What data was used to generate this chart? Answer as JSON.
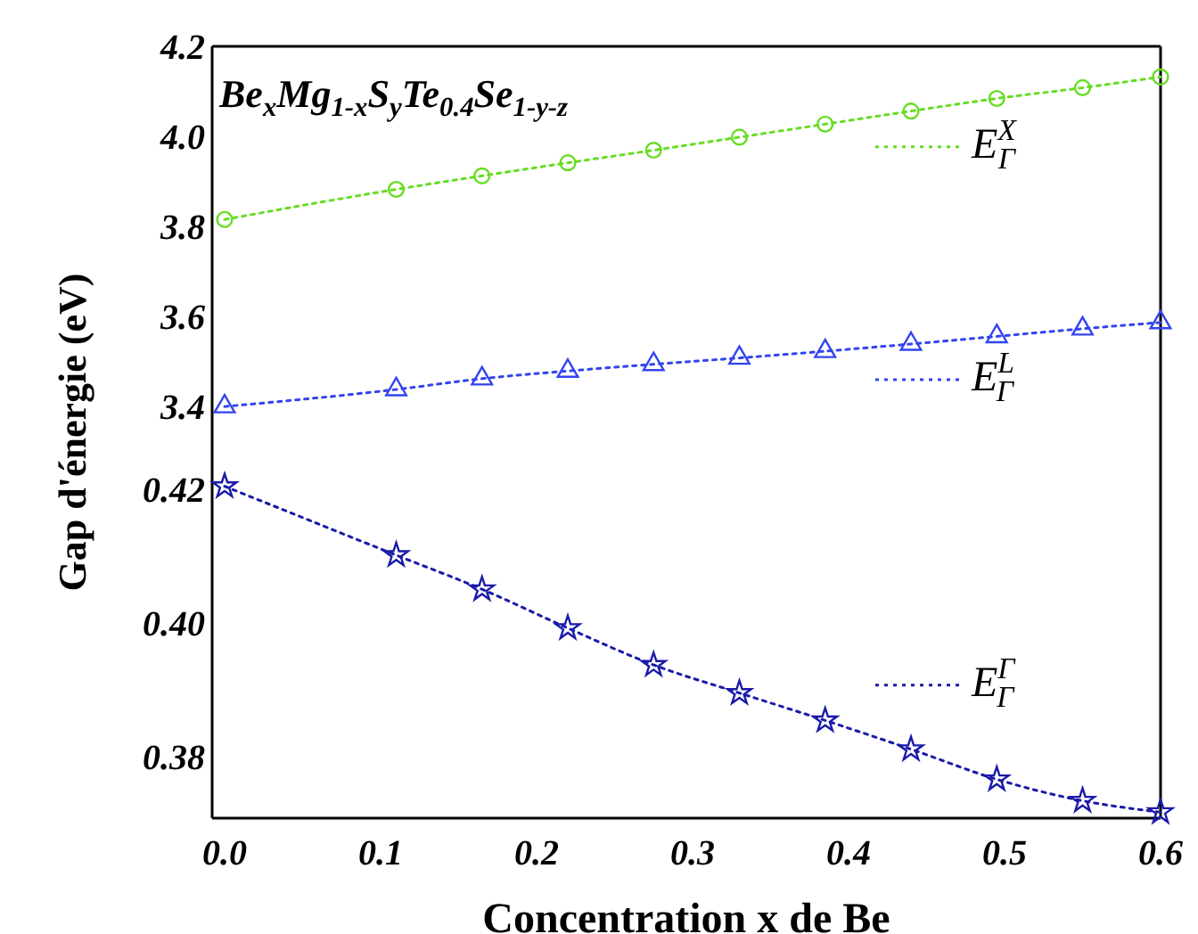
{
  "chart_data": [
    {
      "type": "line",
      "title": "Be$_{x}$Mg$_{1-x}$S$_{y}$Te$_{0.4}$Se$_{1-y-z}$",
      "ylabel": "Gap d'énergie (eV)",
      "x": [
        0,
        0.11,
        0.165,
        0.22,
        0.275,
        0.33,
        0.385,
        0.44,
        0.495,
        0.55,
        0.6
      ],
      "xlim": [
        -0.008,
        0.6
      ],
      "ylim": [
        3.32,
        4.2
      ],
      "yticks": [
        {
          "value": 3.4,
          "label": "3.4"
        },
        {
          "value": 3.6,
          "label": "3.6"
        },
        {
          "value": 3.8,
          "label": "3.8"
        },
        {
          "value": 4.0,
          "label": "4.0"
        },
        {
          "value": 4.2,
          "label": "4.2"
        }
      ],
      "tick_labels": "y",
      "grid": false,
      "legend": "right",
      "line_style": "dotted",
      "series": [
        {
          "name": "E$^{X}$$_{Γ}$",
          "color": "#66dd22",
          "marker": "circle",
          "values": [
            3.815,
            3.882,
            3.912,
            3.941,
            3.969,
            3.998,
            4.027,
            4.056,
            4.084,
            4.108,
            4.132
          ]
        },
        {
          "name": "E$^{L}$$_{Γ}$",
          "color": "#3344ee",
          "marker": "triangle",
          "values": [
            3.399,
            3.437,
            3.461,
            3.478,
            3.493,
            3.507,
            3.522,
            3.538,
            3.555,
            3.572,
            3.586
          ]
        }
      ]
    },
    {
      "type": "line",
      "xlabel": "Concentration x de Be",
      "x": [
        0,
        0.11,
        0.165,
        0.22,
        0.275,
        0.33,
        0.385,
        0.44,
        0.495,
        0.55,
        0.6
      ],
      "xlim": [
        -0.008,
        0.6
      ],
      "xticks": [
        {
          "value": 0,
          "label": "0.0"
        },
        0.1,
        0.2,
        0.3,
        0.4,
        0.5,
        0.6
      ],
      "ylim": [
        0.3708,
        0.427
      ],
      "yticks": [
        0.38,
        {
          "value": 0.4,
          "label": "0.40"
        },
        0.42
      ],
      "grid": false,
      "legend": "right",
      "line_style": "dotted",
      "series": [
        {
          "name": "E$^{Γ}$$_{Γ}$",
          "color": "#1a1aaa",
          "marker": "star",
          "values": [
            0.4204,
            0.4101,
            0.405,
            0.3992,
            0.3937,
            0.3895,
            0.3854,
            0.3811,
            0.3766,
            0.3734,
            0.3717
          ]
        }
      ]
    }
  ]
}
